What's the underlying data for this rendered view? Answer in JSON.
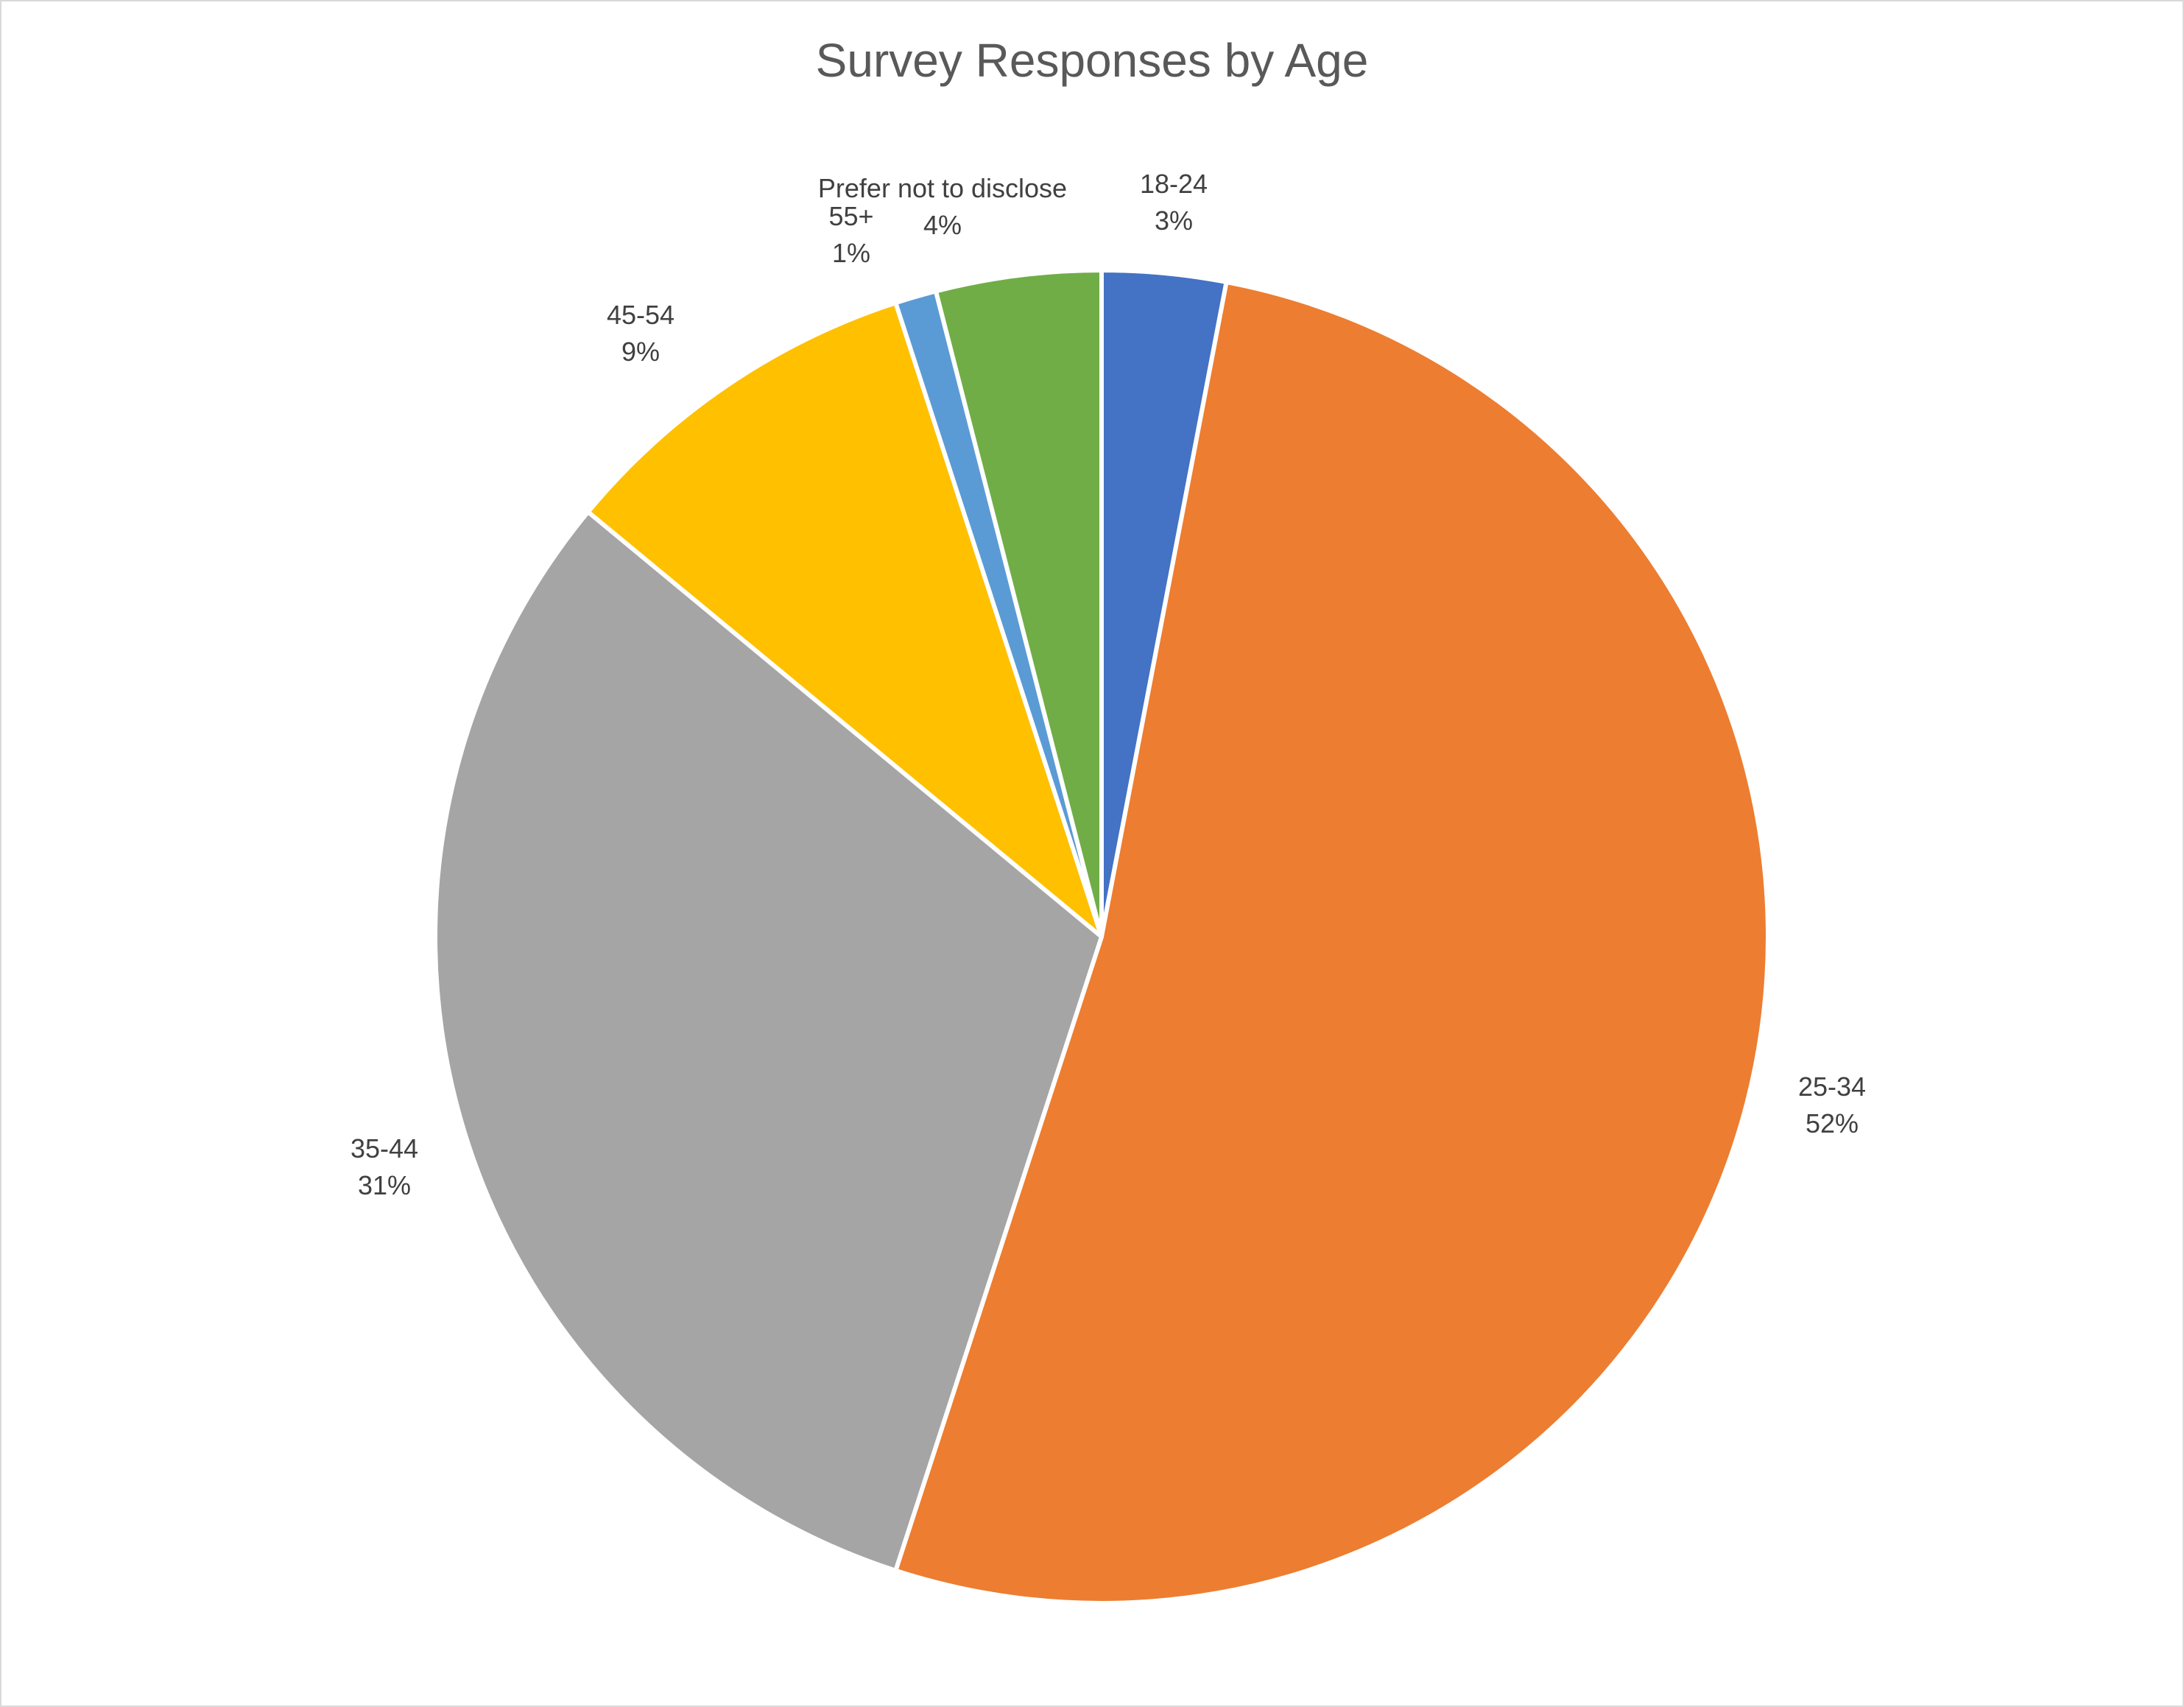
{
  "chart_data": {
    "type": "pie",
    "title": "Survey Responses by Age",
    "categories": [
      "18-24",
      "25-34",
      "35-44",
      "45-54",
      "55+",
      "Prefer not to disclose"
    ],
    "values": [
      3,
      52,
      31,
      9,
      1,
      4
    ],
    "labels": [
      "3%",
      "52%",
      "31%",
      "9%",
      "1%",
      "4%"
    ],
    "colors": [
      "#4472C4",
      "#ED7D31",
      "#A5A5A5",
      "#FFC000",
      "#5B9BD5",
      "#70AD47"
    ],
    "legend": "none",
    "start_angle_deg": 0,
    "direction": "clockwise"
  }
}
